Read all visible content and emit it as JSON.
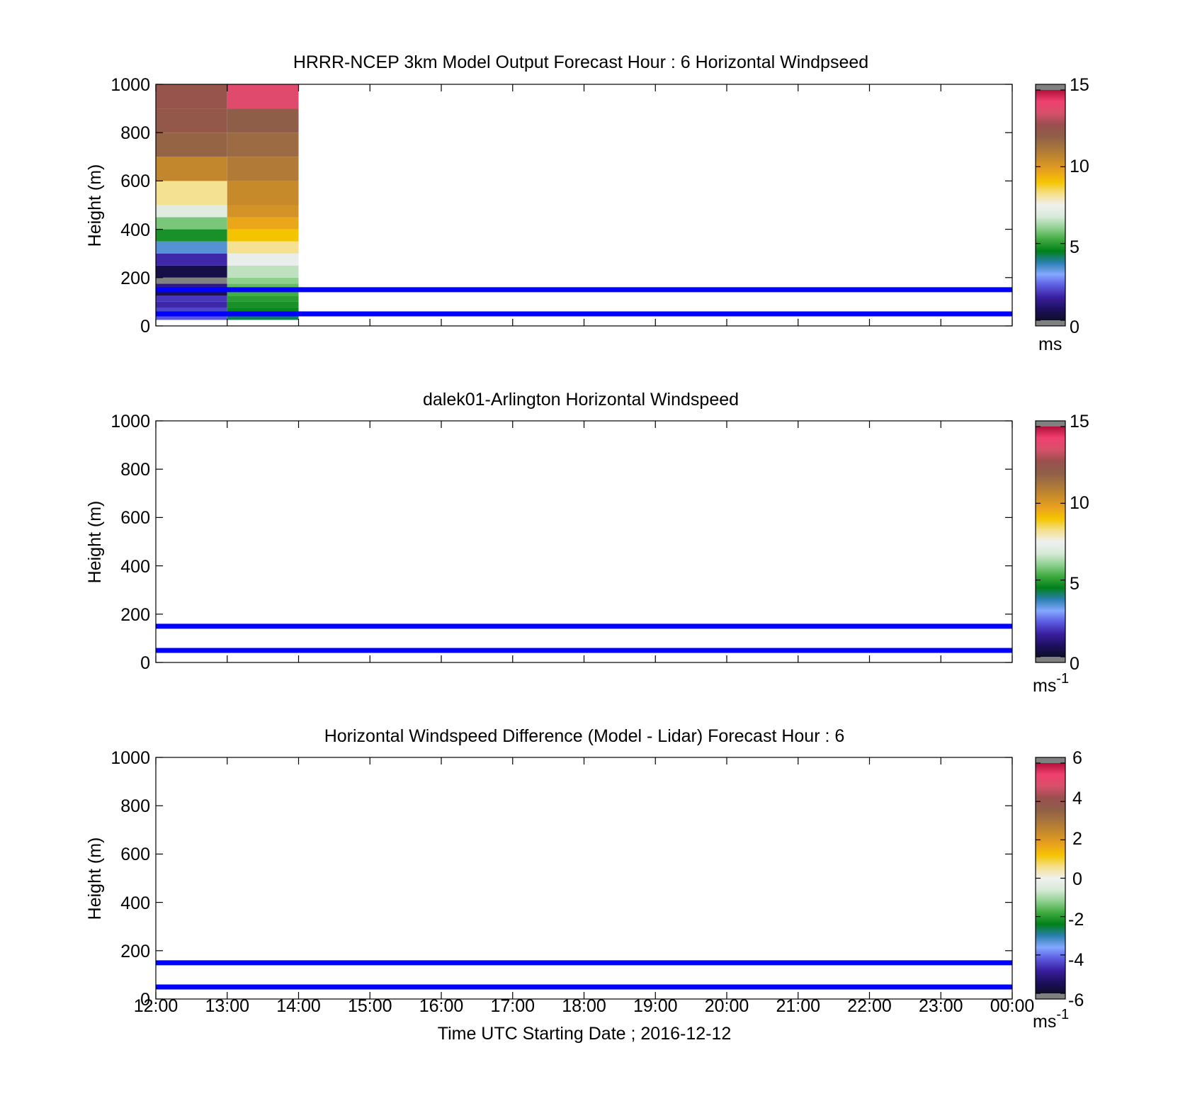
{
  "figure": {
    "x_axis_label": "Time UTC  Starting Date ; 2016-12-12",
    "x_tick_labels": [
      "12:00",
      "13:00",
      "14:00",
      "15:00",
      "16:00",
      "17:00",
      "18:00",
      "19:00",
      "20:00",
      "21:00",
      "22:00",
      "23:00",
      "00:00"
    ],
    "y_tick_labels": [
      "0",
      "200",
      "400",
      "600",
      "800",
      "1000"
    ]
  },
  "chart_data": [
    {
      "type": "heatmap",
      "title": "HRRR-NCEP 3km Model Output   Forecast Hour : 6 Horizontal Windpseed",
      "ylabel": "Height (m)",
      "xlabel": "",
      "xlim": [
        0,
        12
      ],
      "ylim": [
        0,
        1000
      ],
      "grid": false,
      "colorbar": {
        "range": [
          0,
          15
        ],
        "ticks": [
          "0",
          "5",
          "10",
          "15"
        ],
        "unit": "ms",
        "unit_sup": ""
      },
      "reference_lines_m": [
        50,
        150
      ],
      "columns": [
        {
          "x_start": 0,
          "x_end": 1,
          "cells": [
            {
              "y0": 25,
              "y1": 50,
              "v": 2.2
            },
            {
              "y0": 50,
              "y1": 75,
              "v": 2.0
            },
            {
              "y0": 75,
              "y1": 100,
              "v": 1.6
            },
            {
              "y0": 100,
              "y1": 125,
              "v": 1.8
            },
            {
              "y0": 125,
              "y1": 150,
              "v": 0.6
            },
            {
              "y0": 150,
              "y1": 175,
              "v": 1.2
            },
            {
              "y0": 175,
              "y1": 200,
              "v": -1
            },
            {
              "y0": 200,
              "y1": 250,
              "v": 0.4
            },
            {
              "y0": 250,
              "y1": 300,
              "v": 1.6
            },
            {
              "y0": 300,
              "y1": 350,
              "v": 3.4
            },
            {
              "y0": 350,
              "y1": 400,
              "v": 4.8
            },
            {
              "y0": 400,
              "y1": 450,
              "v": 5.8
            },
            {
              "y0": 450,
              "y1": 500,
              "v": 7.0
            },
            {
              "y0": 500,
              "y1": 600,
              "v": 8.2
            },
            {
              "y0": 600,
              "y1": 700,
              "v": 10.6
            },
            {
              "y0": 700,
              "y1": 800,
              "v": 11.8
            },
            {
              "y0": 800,
              "y1": 900,
              "v": 12.3
            },
            {
              "y0": 900,
              "y1": 1000,
              "v": 12.5
            }
          ]
        },
        {
          "x_start": 1,
          "x_end": 2,
          "cells": [
            {
              "y0": 25,
              "y1": 50,
              "v": 4.2
            },
            {
              "y0": 50,
              "y1": 75,
              "v": 4.6
            },
            {
              "y0": 75,
              "y1": 100,
              "v": 4.8
            },
            {
              "y0": 100,
              "y1": 125,
              "v": 5.0
            },
            {
              "y0": 125,
              "y1": 150,
              "v": 5.3
            },
            {
              "y0": 150,
              "y1": 175,
              "v": 5.6
            },
            {
              "y0": 175,
              "y1": 200,
              "v": 6.0
            },
            {
              "y0": 200,
              "y1": 250,
              "v": 6.5
            },
            {
              "y0": 250,
              "y1": 300,
              "v": 7.3
            },
            {
              "y0": 300,
              "y1": 350,
              "v": 8.2
            },
            {
              "y0": 350,
              "y1": 400,
              "v": 9.0
            },
            {
              "y0": 400,
              "y1": 450,
              "v": 9.6
            },
            {
              "y0": 450,
              "y1": 500,
              "v": 10.2
            },
            {
              "y0": 500,
              "y1": 600,
              "v": 10.5
            },
            {
              "y0": 600,
              "y1": 700,
              "v": 11.0
            },
            {
              "y0": 700,
              "y1": 800,
              "v": 11.6
            },
            {
              "y0": 800,
              "y1": 900,
              "v": 12.0
            },
            {
              "y0": 900,
              "y1": 1000,
              "v": 13.8
            }
          ]
        }
      ]
    },
    {
      "type": "heatmap",
      "title": "dalek01-Arlington  Horizontal Windspeed",
      "ylabel": "Height (m)",
      "xlabel": "",
      "xlim": [
        0,
        12
      ],
      "ylim": [
        0,
        1000
      ],
      "grid": false,
      "colorbar": {
        "range": [
          0,
          15
        ],
        "ticks": [
          "0",
          "5",
          "10",
          "15"
        ],
        "unit": "ms",
        "unit_sup": "-1"
      },
      "reference_lines_m": [
        50,
        150
      ],
      "columns": []
    },
    {
      "type": "heatmap",
      "title": "Horizontal Windspeed Difference (Model - Lidar) Forecast Hour : 6",
      "ylabel": "Height (m)",
      "xlabel": "Time UTC  Starting Date ; 2016-12-12",
      "xlim": [
        0,
        12
      ],
      "ylim": [
        0,
        1000
      ],
      "grid": false,
      "colorbar": {
        "range": [
          -6,
          6
        ],
        "ticks": [
          "-6",
          "-4",
          "-2",
          "0",
          "2",
          "4",
          "6"
        ],
        "unit": "ms",
        "unit_sup": "-1"
      },
      "reference_lines_m": [
        50,
        150
      ],
      "columns": []
    }
  ],
  "colormap_stops": [
    "#0d0d2a",
    "#1e1060",
    "#3a1fa0",
    "#5a5ae0",
    "#84a8ff",
    "#2a7fb0",
    "#00801a",
    "#3faa3f",
    "#8fd08f",
    "#d8ead8",
    "#f0f0f0",
    "#f4e08a",
    "#f5c400",
    "#e8a020",
    "#c68a2a",
    "#a7743e",
    "#8f5e48",
    "#9b4f4f",
    "#d6506a",
    "#f04070",
    "#b0103a"
  ],
  "colors": {
    "reference_line": "#0000ff",
    "out_of_range": "#808080"
  }
}
